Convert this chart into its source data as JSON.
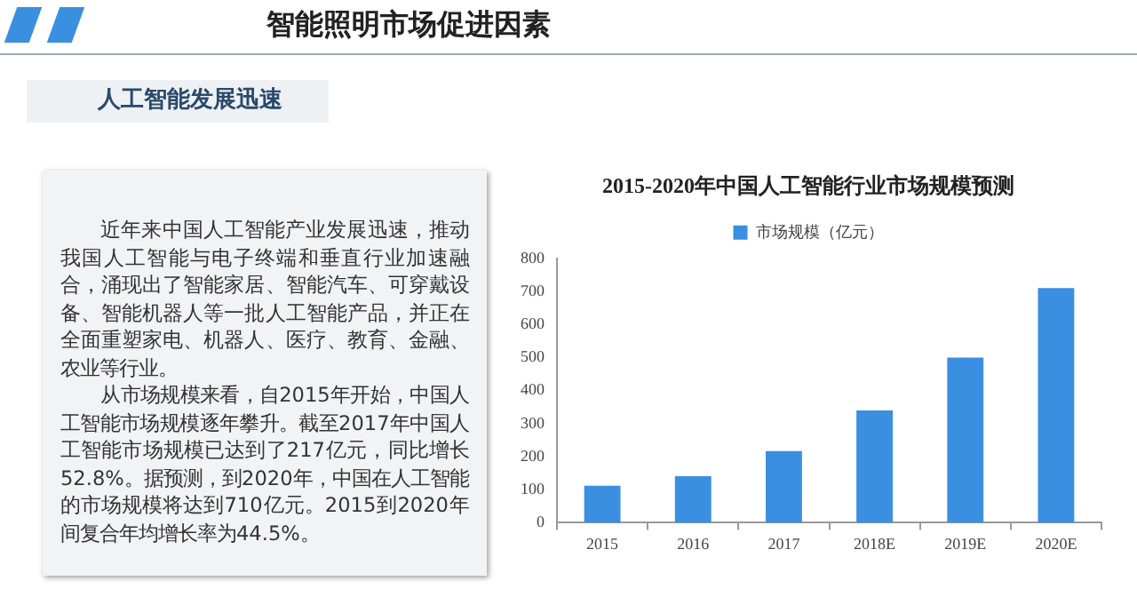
{
  "chart_data": {
    "type": "bar",
    "title": "2015-2020年中国人工智能行业市场规模预测",
    "categories": [
      "2015",
      "2016",
      "2017",
      "2018E",
      "2019E",
      "2020E"
    ],
    "series": [
      {
        "name": "市场规模（亿元）",
        "color": "#3b8fe0",
        "values": [
          112,
          141,
          217,
          340,
          500,
          710
        ]
      }
    ],
    "ylim": [
      0,
      800
    ],
    "yticks": [
      0,
      100,
      200,
      300,
      400,
      500,
      600,
      700,
      800
    ],
    "grid": false,
    "legend": "top",
    "annotations": [
      "智能照明市场促进因素",
      "人工智能发展迅速",
      "近年来中国人工智能产业发展迅速，推动我国人工智能与电子终端和垂直行业加速融合，涌现出了智能家居、智能汽车、可穿戴设备、智能机器人等一批人工智能产品，并正在全面重塑家电、机器人、医疗、教育、金融、农业等行业。",
      "从市场规模来看，自2015年开始，中国人工智能市场规模逐年攀升。截至2017年中国人工智能市场规模已达到了217亿元，同比增长52.8%。据预测，到2020年，中国在人工智能的市场规模将达到710亿元。2015到2020年间复合年均增长率为44.5%。"
    ]
  }
}
